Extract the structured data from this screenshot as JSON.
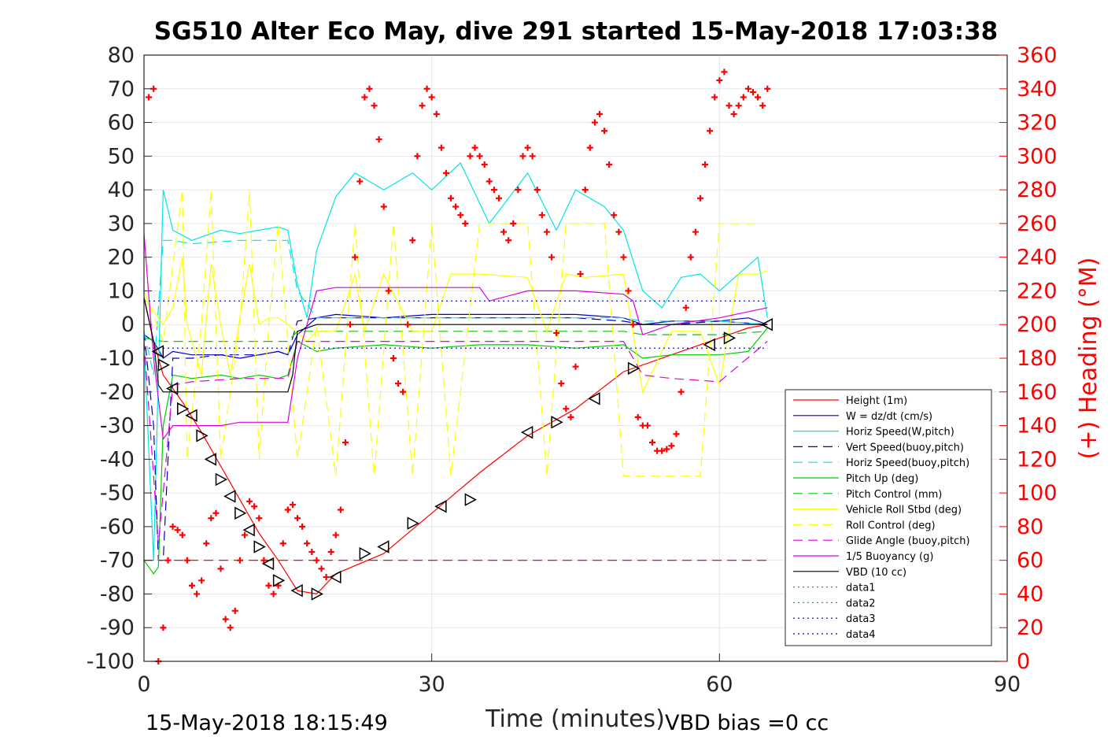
{
  "chart_data": {
    "type": "line",
    "title": "SG510 Alter Eco May, dive 291 started 15-May-2018 17:03:38",
    "xlabel": "Time (minutes)",
    "ylabel": "",
    "y2label": "(+) Heading (°M)",
    "xlim": [
      0,
      90
    ],
    "ylim": [
      -100,
      80
    ],
    "y2lim": [
      0,
      360
    ],
    "x_ticks": [
      "0",
      "30",
      "60",
      "90"
    ],
    "y_ticks": [
      "80",
      "70",
      "60",
      "50",
      "40",
      "30",
      "20",
      "10",
      "0",
      "-10",
      "-20",
      "-30",
      "-40",
      "-50",
      "-60",
      "-70",
      "-80",
      "-90",
      "-100"
    ],
    "y2_ticks": [
      "360",
      "340",
      "320",
      "300",
      "280",
      "260",
      "240",
      "220",
      "200",
      "180",
      "160",
      "140",
      "120",
      "100",
      "80",
      "60",
      "40",
      "20",
      "0"
    ],
    "grid": true,
    "legend_position": "lower-right",
    "footer_left": "15-May-2018 18:15:49",
    "footer_right": "VBD bias =0 cc",
    "series": [
      {
        "name": "Height (1m)",
        "color": "#ff0000",
        "style": "solid",
        "x": [
          0,
          1,
          2,
          4,
          6,
          8,
          10,
          12,
          14,
          16,
          18,
          20,
          25,
          30,
          35,
          40,
          45,
          50,
          55,
          60,
          63,
          65
        ],
        "y": [
          8,
          -5,
          -15,
          -23,
          -32,
          -42,
          -52,
          -62,
          -70,
          -79,
          -80,
          -74,
          -68,
          -56,
          -44,
          -33,
          -25,
          -14,
          -9,
          -4,
          -1,
          0
        ]
      },
      {
        "name": "W = dz/dt (cm/s)",
        "color": "#0000cc",
        "style": "solid",
        "x": [
          0,
          1,
          2,
          3,
          5,
          8,
          10,
          12,
          14,
          15,
          16,
          18,
          20,
          25,
          30,
          35,
          40,
          45,
          50,
          52,
          55,
          60,
          63,
          65
        ],
        "y": [
          -3,
          -5,
          -10,
          -8,
          -9,
          -9,
          -10,
          -9,
          -8,
          -9,
          -3,
          2,
          3,
          2,
          3,
          3,
          3,
          3,
          2,
          0,
          1,
          1,
          2,
          0
        ]
      },
      {
        "name": "Horiz Speed(W,pitch)",
        "color": "#00e5e5",
        "style": "solid",
        "x": [
          0,
          1,
          2,
          3,
          5,
          8,
          10,
          12,
          14,
          15,
          16,
          17,
          18,
          20,
          22,
          25,
          28,
          30,
          33,
          36,
          40,
          43,
          45,
          48,
          50,
          52,
          54,
          56,
          58,
          60,
          62,
          64,
          65
        ],
        "y": [
          -5,
          -70,
          40,
          28,
          25,
          28,
          27,
          28,
          29,
          28,
          12,
          2,
          22,
          38,
          45,
          40,
          45,
          40,
          48,
          30,
          45,
          28,
          40,
          35,
          28,
          10,
          5,
          14,
          15,
          10,
          15,
          20,
          2
        ]
      },
      {
        "name": "Vert Speed(buoy,pitch)",
        "color": "#0000cc",
        "style": "dashed",
        "x": [
          0,
          1,
          1.5,
          2,
          3,
          5,
          8,
          10,
          12,
          14,
          15,
          16,
          18,
          25,
          35,
          45,
          50,
          52,
          55,
          60,
          65
        ],
        "y": [
          -2,
          -30,
          -70,
          -70,
          -10,
          -10,
          -9,
          -9,
          -9,
          -8,
          -9,
          1,
          2,
          2,
          2,
          2,
          1,
          0,
          0,
          1,
          0
        ]
      },
      {
        "name": "Horiz Speed(buoy,pitch)",
        "color": "#00e5e5",
        "style": "dashed",
        "x": [
          0,
          1,
          2,
          3,
          5,
          10,
          15,
          16,
          18,
          30,
          50,
          52,
          60,
          65
        ],
        "y": [
          -2,
          -15,
          25,
          25,
          24,
          25,
          25,
          10,
          2,
          2,
          2,
          1,
          1,
          0
        ]
      },
      {
        "name": "Pitch Up (deg)",
        "color": "#00cc00",
        "style": "solid",
        "x": [
          0,
          1,
          1.5,
          2,
          3,
          5,
          8,
          10,
          12,
          14,
          15,
          16,
          18,
          20,
          25,
          30,
          35,
          40,
          45,
          50,
          52,
          55,
          60,
          63,
          65
        ],
        "y": [
          -70,
          -74,
          -72,
          -30,
          -15,
          -16,
          -15,
          -16,
          -15,
          -16,
          -15,
          -5,
          -8,
          -7,
          -6,
          -7,
          -6,
          -6,
          -7,
          -6,
          -10,
          -9,
          -9,
          -8,
          -1
        ]
      },
      {
        "name": "Pitch Control (mm)",
        "color": "#00cc00",
        "style": "dashed",
        "x": [
          0,
          2,
          5,
          10,
          15,
          16,
          20,
          30,
          40,
          50,
          52,
          60,
          65
        ],
        "y": [
          -4,
          -5,
          -5,
          -5,
          -5,
          -2,
          -2,
          -2,
          -2,
          -2,
          -3,
          -3,
          -2
        ]
      },
      {
        "name": "Vehicle Roll Stbd (deg)",
        "color": "#ffff00",
        "style": "solid",
        "x": [
          0,
          2,
          3,
          4,
          4.5,
          6,
          7,
          8,
          9,
          10,
          11,
          12,
          13,
          14,
          15,
          17,
          18,
          20,
          22,
          23,
          25,
          28,
          30,
          32,
          35,
          40,
          42,
          44,
          46,
          50,
          52,
          55,
          58,
          60,
          62,
          64,
          65
        ],
        "y": [
          8,
          0,
          5,
          20,
          0,
          -15,
          18,
          0,
          -15,
          2,
          18,
          0,
          2,
          2,
          0,
          -5,
          -2,
          -2,
          15,
          -2,
          15,
          -2,
          -2,
          15,
          15,
          14,
          -2,
          15,
          14,
          15,
          -20,
          -2,
          -2,
          -18,
          15,
          15,
          16
        ]
      },
      {
        "name": "Roll Control (deg)",
        "color": "#ffff00",
        "style": "dashed",
        "x": [
          0,
          2,
          4,
          4.5,
          6,
          7,
          8,
          10,
          11,
          12,
          13,
          14,
          16,
          18,
          20,
          22,
          24,
          26,
          28,
          30,
          32,
          35,
          40,
          42,
          44,
          48,
          50,
          52,
          55,
          58,
          60,
          62,
          64
        ],
        "y": [
          10,
          -5,
          40,
          -40,
          0,
          40,
          -40,
          0,
          40,
          -40,
          0,
          30,
          -40,
          0,
          -45,
          30,
          -45,
          30,
          -45,
          30,
          -45,
          30,
          30,
          -45,
          30,
          30,
          -45,
          -45,
          -45,
          -45,
          30,
          30,
          30
        ]
      },
      {
        "name": "Glide Angle (buoy,pitch)",
        "color": "#dd00dd",
        "style": "dashed",
        "x": [
          0,
          1,
          1.5,
          2,
          3,
          5,
          10,
          15,
          16,
          20,
          30,
          40,
          50,
          52,
          55,
          60,
          65
        ],
        "y": [
          -5,
          -45,
          -65,
          -50,
          -18,
          -17,
          -16,
          -16,
          -5,
          -5,
          -5,
          -5,
          -5,
          -15,
          -16,
          -17,
          -5
        ]
      },
      {
        "name": "1/5 Buoyancy (g)",
        "color": "#dd00dd",
        "style": "solid",
        "x": [
          0,
          1,
          2,
          3,
          5,
          8,
          10,
          15,
          16,
          18,
          20,
          30,
          35,
          36,
          40,
          45,
          50,
          51,
          52,
          55,
          60,
          65
        ],
        "y": [
          27,
          -10,
          -34,
          -30,
          -30,
          -30,
          -29,
          -29,
          -10,
          10,
          11,
          11,
          11,
          7,
          10,
          10,
          9,
          7,
          -3,
          0,
          2,
          5
        ]
      },
      {
        "name": "VBD (10 cc)",
        "color": "#000000",
        "style": "solid",
        "x": [
          0,
          1,
          1.5,
          2,
          5,
          10,
          15,
          15.5,
          16,
          18,
          30,
          40,
          50,
          60,
          65
        ],
        "y": [
          8,
          -5,
          -18,
          -20,
          -20,
          -20,
          -20,
          -15,
          -2,
          0,
          0,
          0,
          0,
          0,
          0
        ]
      },
      {
        "name": "data1",
        "color": "#00cc00",
        "style": "dotted",
        "x": [],
        "y": []
      },
      {
        "name": "data2",
        "color": "#00cc00",
        "style": "dotted",
        "x": [],
        "y": []
      },
      {
        "name": "data3",
        "color": "#0000cc",
        "style": "dotted",
        "x": [
          0,
          65
        ],
        "y": [
          7,
          7
        ]
      },
      {
        "name": "data4",
        "color": "#0000cc",
        "style": "dotted",
        "x": [
          0,
          65
        ],
        "y": [
          -7,
          -7
        ]
      }
    ],
    "reference_line": {
      "color": "#cc0000",
      "style": "dashed",
      "x": [
        0,
        65
      ],
      "y": [
        -70,
        -70
      ]
    },
    "heading": {
      "color": "#ff0000",
      "marker": "+",
      "axis": "right",
      "x": [
        0.5,
        1,
        1.5,
        2,
        2.5,
        3,
        3.5,
        4,
        4.5,
        5,
        5.5,
        6,
        6.5,
        7,
        7.5,
        8,
        8.5,
        9,
        9.5,
        10,
        10.5,
        11,
        11.5,
        12,
        12.5,
        13,
        13.5,
        14,
        14.5,
        15,
        15.5,
        16,
        16.5,
        17,
        17.5,
        18,
        18.5,
        19,
        19.5,
        20,
        20.5,
        21,
        21.5,
        22,
        22.5,
        23,
        23.5,
        24,
        24.5,
        25,
        25.5,
        26,
        26.5,
        27,
        27.5,
        28,
        28.5,
        29,
        29.5,
        30,
        30.5,
        31,
        31.5,
        32,
        32.5,
        33,
        33.5,
        34,
        34.5,
        35,
        35.5,
        36,
        36.5,
        37,
        37.5,
        38,
        38.5,
        39,
        39.5,
        40,
        40.5,
        41,
        41.5,
        42,
        42.5,
        43,
        43.5,
        44,
        44.5,
        45,
        45.5,
        46,
        46.5,
        47,
        47.5,
        48,
        48.5,
        49,
        49.5,
        50,
        50.5,
        51,
        51.5,
        52,
        52.5,
        53,
        53.5,
        54,
        54.5,
        55,
        55.5,
        56,
        56.5,
        57,
        57.5,
        58,
        58.5,
        59,
        59.5,
        60,
        60.5,
        61,
        61.5,
        62,
        62.5,
        63,
        63.5,
        64,
        64.5,
        65
      ],
      "y": [
        335,
        340,
        0,
        20,
        60,
        80,
        78,
        75,
        60,
        45,
        40,
        48,
        70,
        85,
        88,
        55,
        25,
        20,
        30,
        60,
        75,
        95,
        92,
        85,
        60,
        45,
        40,
        45,
        70,
        90,
        93,
        85,
        80,
        70,
        65,
        60,
        55,
        50,
        65,
        75,
        90,
        130,
        200,
        240,
        285,
        335,
        340,
        330,
        310,
        270,
        220,
        180,
        165,
        160,
        200,
        250,
        300,
        330,
        340,
        335,
        325,
        305,
        290,
        275,
        270,
        265,
        260,
        300,
        305,
        300,
        295,
        285,
        280,
        275,
        255,
        250,
        260,
        280,
        300,
        305,
        300,
        280,
        265,
        255,
        240,
        195,
        165,
        150,
        145,
        175,
        230,
        280,
        305,
        320,
        325,
        315,
        295,
        265,
        255,
        240,
        220,
        200,
        145,
        140,
        140,
        130,
        125,
        125,
        126,
        128,
        135,
        160,
        210,
        240,
        255,
        275,
        295,
        315,
        335,
        345,
        350,
        330,
        325,
        330,
        335,
        340,
        338,
        335,
        330,
        340
      ]
    },
    "glider_markers": {
      "color": "#000000",
      "x": [
        1.5,
        2,
        3,
        4,
        5,
        6,
        7,
        8,
        9,
        10,
        11,
        12,
        13,
        14,
        16,
        18,
        20,
        23,
        25,
        28,
        31,
        34,
        40,
        43,
        47,
        51,
        59,
        61,
        65
      ],
      "y": [
        -8,
        -12,
        -19,
        -25,
        -27,
        -33,
        -40,
        -46,
        -51,
        -56,
        -61,
        -66,
        -71,
        -76,
        -79,
        -80,
        -75,
        -68,
        -66,
        -59,
        -54,
        -52,
        -32,
        -29,
        -22,
        -13,
        -6,
        -4,
        0
      ]
    }
  }
}
